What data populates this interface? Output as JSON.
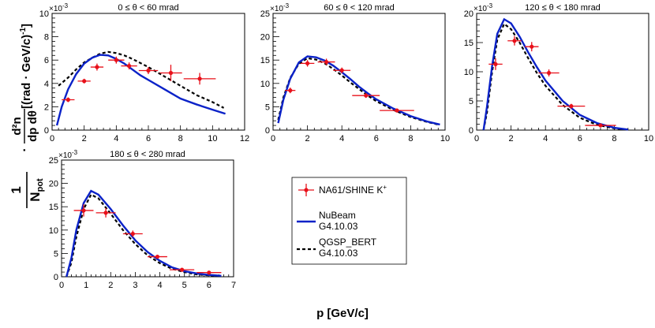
{
  "figure": {
    "xlabel": "p [GeV/c]",
    "ylabel_prefix": "1",
    "ylabel_npot": "N",
    "ylabel_npot_sub": "pot",
    "ylabel_dot": "·",
    "ylabel_num": "d²n",
    "ylabel_den": "dp dθ",
    "ylabel_units": "[(rad · GeV/c)",
    "ylabel_units_exp": "-1",
    "ylabel_units_close": "]"
  },
  "legend": {
    "data_label": "NA61/SHINE K",
    "data_label_sup": "+",
    "nubeam_line1": "NuBeam",
    "nubeam_line2": "G4.10.03",
    "qgsp_line1": "QGSP_BERT",
    "qgsp_line2": "G4.10.03",
    "data_color": "#e8101a",
    "nubeam_color": "#0b22c8",
    "qgsp_color": "#000000"
  },
  "chart_data": [
    {
      "type": "line",
      "title": "0 ≤ θ < 60 mrad",
      "scale_label": "×10",
      "scale_exp": "-3",
      "xlim": [
        0,
        12
      ],
      "ylim": [
        0,
        10
      ],
      "xticks": [
        0,
        2,
        4,
        6,
        8,
        10,
        12
      ],
      "yticks": [
        0,
        2,
        4,
        6,
        8,
        10
      ],
      "data": [
        {
          "x": 1.0,
          "y": 2.6,
          "xerr": 0.4,
          "yerr": 0.2
        },
        {
          "x": 2.0,
          "y": 4.2,
          "xerr": 0.4,
          "yerr": 0.2
        },
        {
          "x": 2.8,
          "y": 5.4,
          "xerr": 0.4,
          "yerr": 0.3
        },
        {
          "x": 4.0,
          "y": 6.0,
          "xerr": 0.5,
          "yerr": 0.3
        },
        {
          "x": 4.8,
          "y": 5.5,
          "xerr": 0.5,
          "yerr": 0.3
        },
        {
          "x": 6.0,
          "y": 5.1,
          "xerr": 0.6,
          "yerr": 0.3
        },
        {
          "x": 7.4,
          "y": 4.9,
          "xerr": 0.7,
          "yerr": 0.7
        },
        {
          "x": 9.2,
          "y": 4.4,
          "xerr": 1.0,
          "yerr": 0.5
        }
      ],
      "nubeam": [
        [
          0.3,
          0.4
        ],
        [
          0.6,
          2.0
        ],
        [
          1.0,
          3.5
        ],
        [
          1.5,
          4.8
        ],
        [
          2.0,
          5.7
        ],
        [
          2.5,
          6.2
        ],
        [
          3.0,
          6.45
        ],
        [
          3.5,
          6.4
        ],
        [
          4.0,
          6.1
        ],
        [
          4.5,
          5.7
        ],
        [
          5.0,
          5.2
        ],
        [
          5.5,
          4.7
        ],
        [
          6.0,
          4.3
        ],
        [
          7.0,
          3.5
        ],
        [
          8.0,
          2.7
        ],
        [
          9.0,
          2.2
        ],
        [
          10.0,
          1.75
        ],
        [
          10.8,
          1.4
        ]
      ],
      "qgsp": [
        [
          0.4,
          3.8
        ],
        [
          1.0,
          4.5
        ],
        [
          1.5,
          5.2
        ],
        [
          2.0,
          5.8
        ],
        [
          2.5,
          6.2
        ],
        [
          3.0,
          6.55
        ],
        [
          3.5,
          6.7
        ],
        [
          4.0,
          6.6
        ],
        [
          4.5,
          6.4
        ],
        [
          5.0,
          6.1
        ],
        [
          6.0,
          5.4
        ],
        [
          7.0,
          4.6
        ],
        [
          8.0,
          3.8
        ],
        [
          9.0,
          3.0
        ],
        [
          10.0,
          2.4
        ],
        [
          10.7,
          1.9
        ]
      ]
    },
    {
      "type": "line",
      "title": "60 ≤ θ < 120 mrad",
      "scale_label": "×10",
      "scale_exp": "-3",
      "xlim": [
        0,
        10
      ],
      "ylim": [
        0,
        25
      ],
      "xticks": [
        0,
        2,
        4,
        6,
        8,
        10
      ],
      "yticks": [
        0,
        5,
        10,
        15,
        20,
        25
      ],
      "data": [
        {
          "x": 1.0,
          "y": 8.5,
          "xerr": 0.3,
          "yerr": 0.6
        },
        {
          "x": 2.0,
          "y": 14.3,
          "xerr": 0.4,
          "yerr": 0.7
        },
        {
          "x": 3.1,
          "y": 14.6,
          "xerr": 0.5,
          "yerr": 0.7
        },
        {
          "x": 4.0,
          "y": 12.8,
          "xerr": 0.5,
          "yerr": 0.6
        },
        {
          "x": 5.4,
          "y": 7.4,
          "xerr": 0.8,
          "yerr": 0.5
        },
        {
          "x": 7.2,
          "y": 4.2,
          "xerr": 1.0,
          "yerr": 0.4
        }
      ],
      "nubeam": [
        [
          0.3,
          1.5
        ],
        [
          0.6,
          6.5
        ],
        [
          1.0,
          11.0
        ],
        [
          1.5,
          14.5
        ],
        [
          2.0,
          15.8
        ],
        [
          2.5,
          15.6
        ],
        [
          3.0,
          14.9
        ],
        [
          3.5,
          13.8
        ],
        [
          4.0,
          12.4
        ],
        [
          4.5,
          10.9
        ],
        [
          5.0,
          9.3
        ],
        [
          5.5,
          7.9
        ],
        [
          6.0,
          6.6
        ],
        [
          7.0,
          4.6
        ],
        [
          8.0,
          3.0
        ],
        [
          9.0,
          1.8
        ],
        [
          9.7,
          1.2
        ]
      ],
      "qgsp": [
        [
          0.3,
          2.2
        ],
        [
          0.6,
          7.0
        ],
        [
          1.0,
          11.2
        ],
        [
          1.5,
          14.2
        ],
        [
          2.0,
          15.4
        ],
        [
          2.5,
          15.1
        ],
        [
          3.0,
          14.3
        ],
        [
          3.5,
          13.1
        ],
        [
          4.0,
          11.7
        ],
        [
          4.5,
          10.2
        ],
        [
          5.0,
          8.8
        ],
        [
          5.5,
          7.4
        ],
        [
          6.0,
          6.2
        ],
        [
          7.0,
          4.3
        ],
        [
          8.0,
          2.8
        ],
        [
          9.0,
          1.7
        ],
        [
          9.7,
          1.1
        ]
      ]
    },
    {
      "type": "line",
      "title": "120 ≤ θ < 180 mrad",
      "scale_label": "×10",
      "scale_exp": "-3",
      "xlim": [
        0,
        10
      ],
      "ylim": [
        0,
        20
      ],
      "xticks": [
        0,
        2,
        4,
        6,
        8,
        10
      ],
      "yticks": [
        0,
        5,
        10,
        15,
        20
      ],
      "data": [
        {
          "x": 1.1,
          "y": 11.3,
          "xerr": 0.4,
          "yerr": 1.0
        },
        {
          "x": 2.2,
          "y": 15.3,
          "xerr": 0.4,
          "yerr": 0.8
        },
        {
          "x": 3.2,
          "y": 14.3,
          "xerr": 0.4,
          "yerr": 0.8
        },
        {
          "x": 4.2,
          "y": 9.8,
          "xerr": 0.6,
          "yerr": 0.6
        },
        {
          "x": 5.5,
          "y": 4.1,
          "xerr": 0.8,
          "yerr": 0.4
        },
        {
          "x": 7.2,
          "y": 0.8,
          "xerr": 0.9,
          "yerr": 0.3
        }
      ],
      "nubeam": [
        [
          0.4,
          0.0
        ],
        [
          0.6,
          4.0
        ],
        [
          0.9,
          11.0
        ],
        [
          1.2,
          16.5
        ],
        [
          1.6,
          19.0
        ],
        [
          2.0,
          18.3
        ],
        [
          2.5,
          16.0
        ],
        [
          3.0,
          13.3
        ],
        [
          3.5,
          10.8
        ],
        [
          4.0,
          8.5
        ],
        [
          5.0,
          5.0
        ],
        [
          6.0,
          2.6
        ],
        [
          7.0,
          1.2
        ],
        [
          8.0,
          0.4
        ],
        [
          8.8,
          0.1
        ]
      ],
      "qgsp": [
        [
          0.4,
          0.0
        ],
        [
          0.6,
          3.0
        ],
        [
          0.9,
          10.0
        ],
        [
          1.2,
          15.5
        ],
        [
          1.6,
          18.2
        ],
        [
          2.0,
          17.3
        ],
        [
          2.5,
          15.0
        ],
        [
          3.0,
          12.3
        ],
        [
          3.5,
          9.8
        ],
        [
          4.0,
          7.6
        ],
        [
          5.0,
          4.3
        ],
        [
          6.0,
          2.1
        ],
        [
          7.0,
          0.9
        ],
        [
          8.0,
          0.3
        ],
        [
          8.8,
          0.05
        ]
      ]
    },
    {
      "type": "line",
      "title": "180 ≤ θ < 280 mrad",
      "scale_label": "×10",
      "scale_exp": "-3",
      "xlim": [
        0,
        7
      ],
      "ylim": [
        0,
        25
      ],
      "xticks": [
        0,
        1,
        2,
        3,
        4,
        5,
        6,
        7
      ],
      "yticks": [
        0,
        5,
        10,
        15,
        20,
        25
      ],
      "data": [
        {
          "x": 0.9,
          "y": 14.2,
          "xerr": 0.4,
          "yerr": 1.3
        },
        {
          "x": 1.8,
          "y": 13.7,
          "xerr": 0.4,
          "yerr": 1.0
        },
        {
          "x": 2.9,
          "y": 9.2,
          "xerr": 0.4,
          "yerr": 0.7
        },
        {
          "x": 3.9,
          "y": 4.3,
          "xerr": 0.4,
          "yerr": 0.4
        },
        {
          "x": 4.9,
          "y": 1.5,
          "xerr": 0.5,
          "yerr": 0.2
        },
        {
          "x": 6.0,
          "y": 0.9,
          "xerr": 0.5,
          "yerr": 0.2
        }
      ],
      "nubeam": [
        [
          0.2,
          0.0
        ],
        [
          0.4,
          4.0
        ],
        [
          0.6,
          10.0
        ],
        [
          0.9,
          15.8
        ],
        [
          1.2,
          18.4
        ],
        [
          1.5,
          17.6
        ],
        [
          2.0,
          14.5
        ],
        [
          2.5,
          11.0
        ],
        [
          3.0,
          7.8
        ],
        [
          3.5,
          5.3
        ],
        [
          4.0,
          3.4
        ],
        [
          4.5,
          2.0
        ],
        [
          5.0,
          1.2
        ],
        [
          5.5,
          0.7
        ],
        [
          6.0,
          0.4
        ],
        [
          6.5,
          0.2
        ]
      ],
      "qgsp": [
        [
          0.2,
          0.0
        ],
        [
          0.4,
          3.0
        ],
        [
          0.6,
          8.5
        ],
        [
          0.9,
          14.5
        ],
        [
          1.2,
          17.6
        ],
        [
          1.5,
          16.8
        ],
        [
          2.0,
          13.5
        ],
        [
          2.5,
          10.0
        ],
        [
          3.0,
          7.0
        ],
        [
          3.5,
          4.6
        ],
        [
          4.0,
          2.9
        ],
        [
          4.5,
          1.7
        ],
        [
          5.0,
          1.0
        ],
        [
          5.5,
          0.5
        ],
        [
          6.0,
          0.3
        ],
        [
          6.5,
          0.15
        ]
      ]
    }
  ]
}
